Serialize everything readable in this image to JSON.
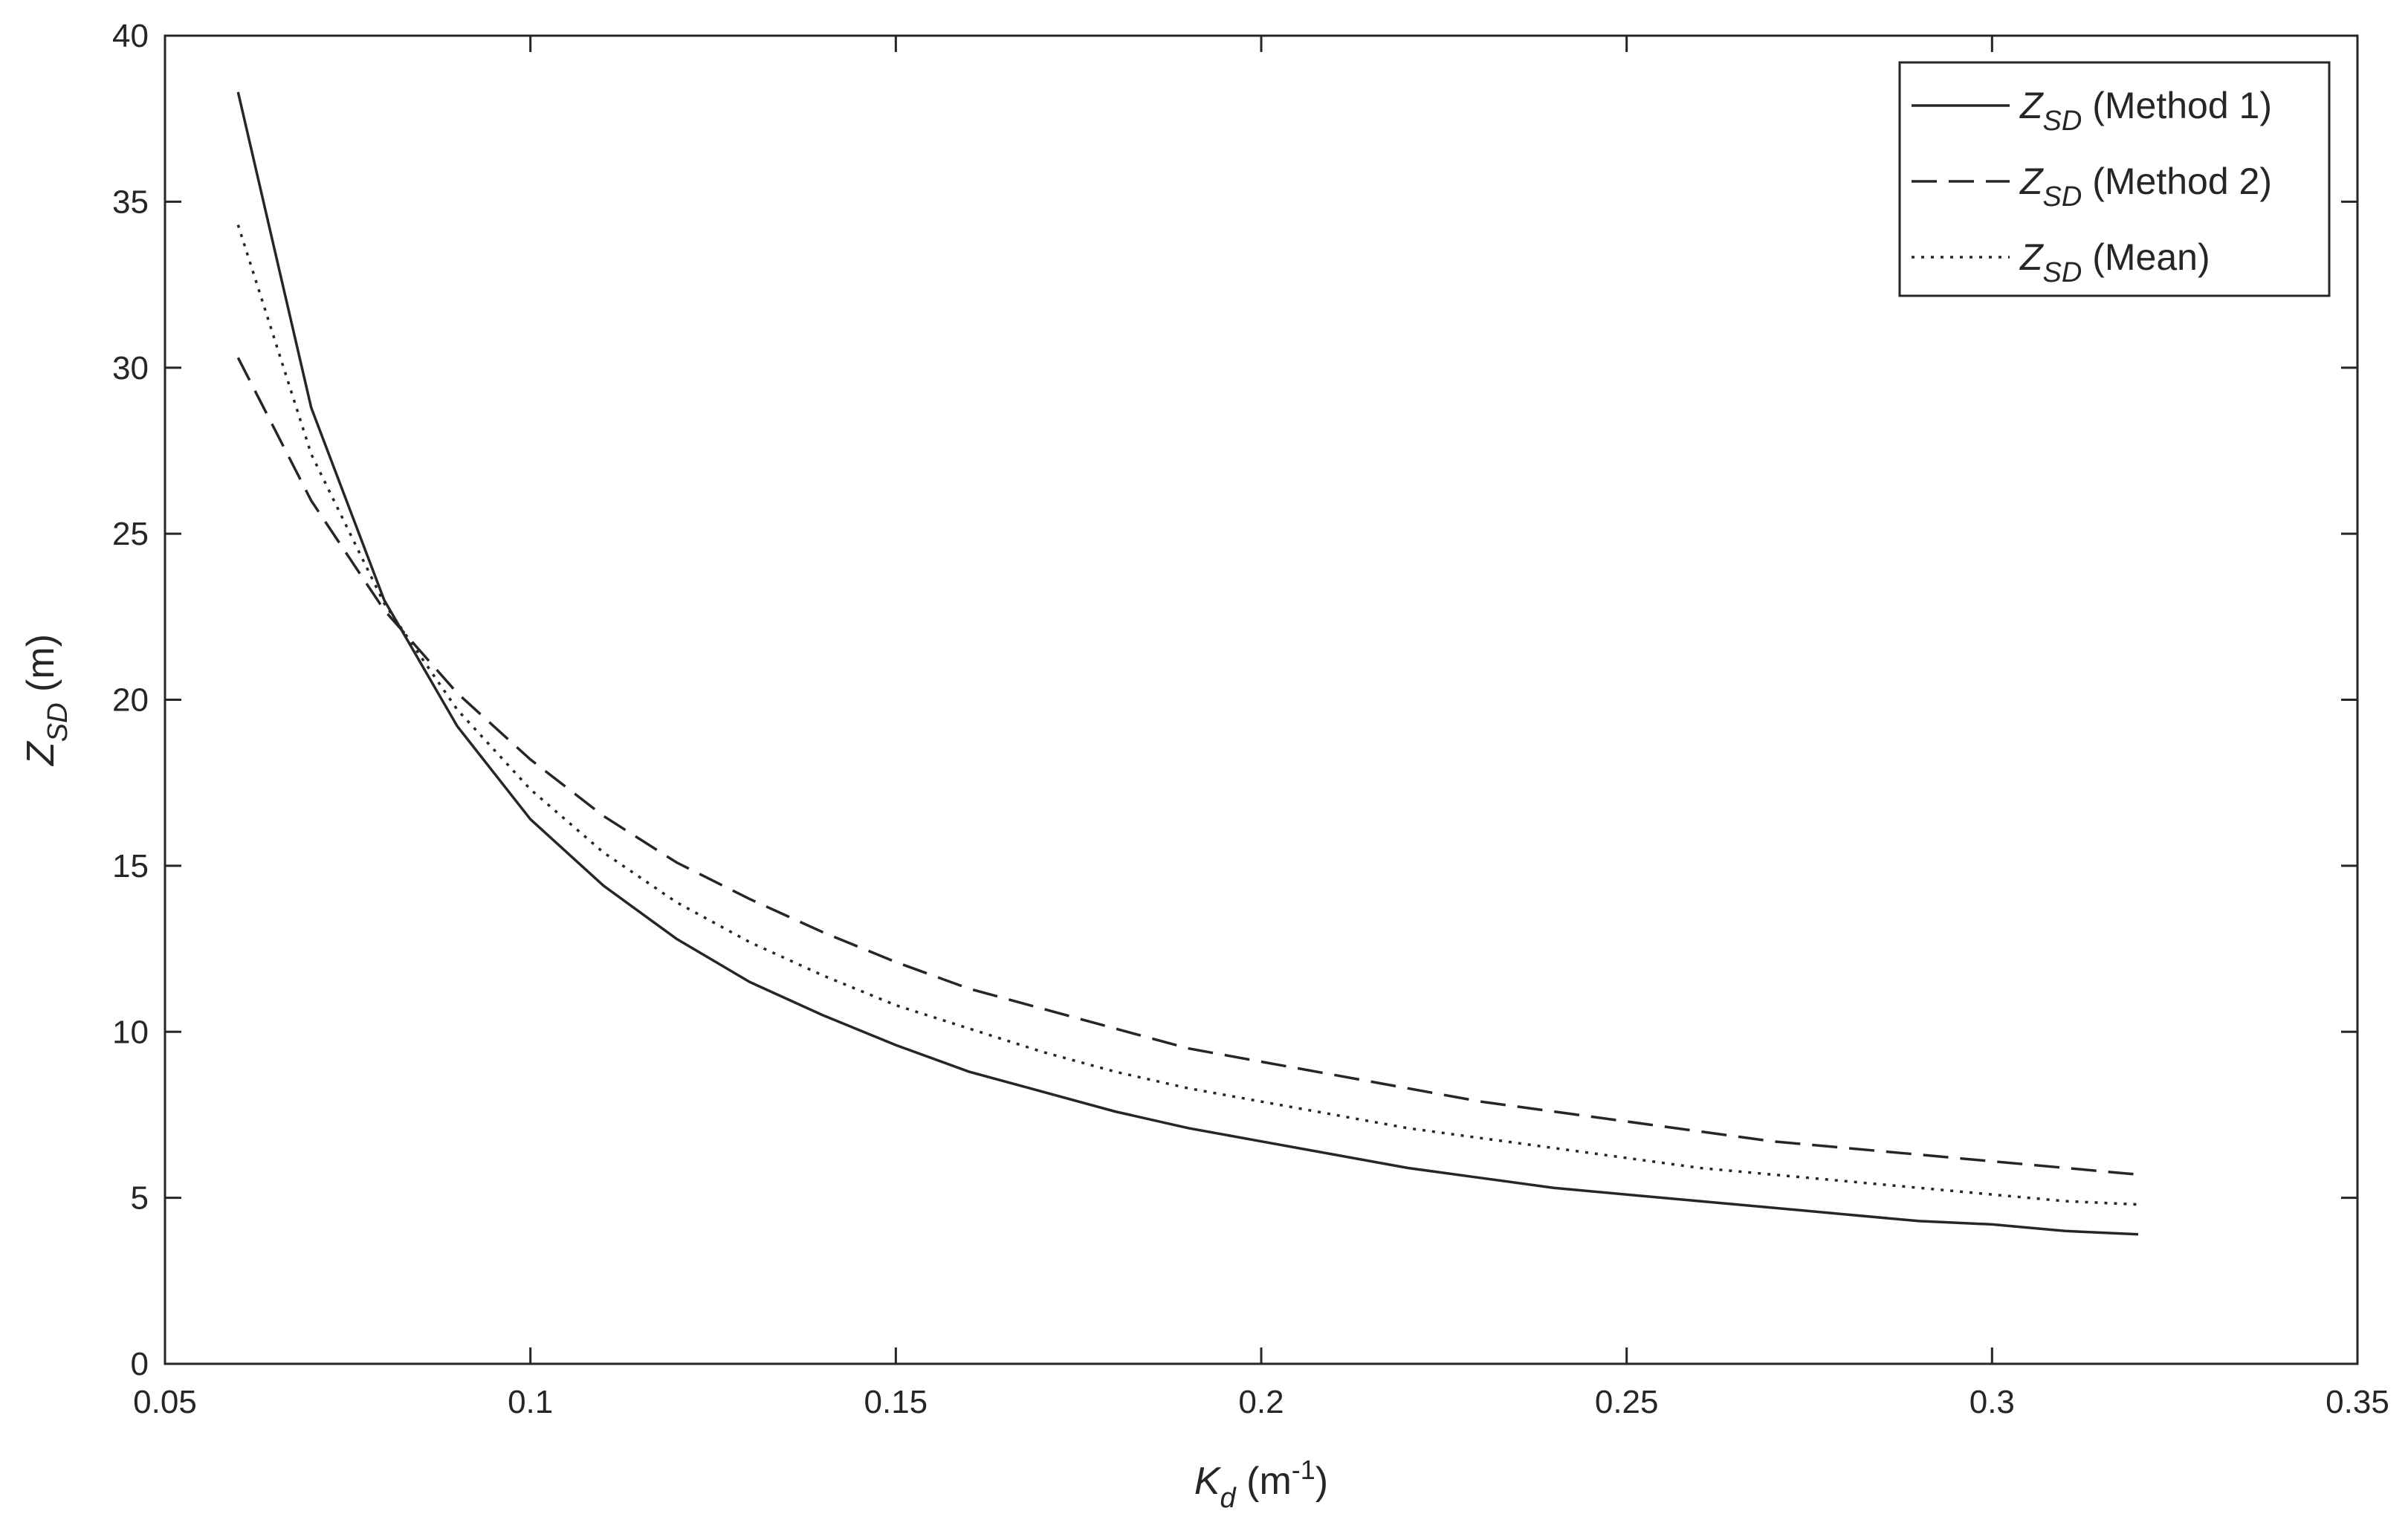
{
  "chart_data": {
    "type": "line",
    "xlabel": {
      "main": "K",
      "sub": "d",
      "unit_open": " (m",
      "unit_sup": "-1",
      "unit_close": ")"
    },
    "ylabel": {
      "main": "Z",
      "sub": "SD",
      "unit": " (m)"
    },
    "xlim": [
      0.05,
      0.35
    ],
    "ylim": [
      0,
      40
    ],
    "x_ticks": [
      0.05,
      0.1,
      0.15,
      0.2,
      0.25,
      0.3,
      0.35
    ],
    "x_tick_labels": [
      "0.05",
      "0.1",
      "0.15",
      "0.2",
      "0.25",
      "0.3",
      "0.35"
    ],
    "y_ticks": [
      0,
      5,
      10,
      15,
      20,
      25,
      30,
      35,
      40
    ],
    "y_tick_labels": [
      "0",
      "5",
      "10",
      "15",
      "20",
      "25",
      "30",
      "35",
      "40"
    ],
    "grid": false,
    "legend_position": "top-right",
    "x": [
      0.06,
      0.07,
      0.08,
      0.09,
      0.1,
      0.11,
      0.12,
      0.13,
      0.14,
      0.15,
      0.16,
      0.17,
      0.18,
      0.19,
      0.2,
      0.21,
      0.22,
      0.23,
      0.24,
      0.25,
      0.26,
      0.27,
      0.28,
      0.29,
      0.3,
      0.31,
      0.32
    ],
    "series": [
      {
        "name_main": "Z",
        "name_sub": "SD",
        "name_rest": " (Method 1)",
        "line_style": "solid",
        "values": [
          38.3,
          28.8,
          23.0,
          19.2,
          16.4,
          14.4,
          12.8,
          11.5,
          10.5,
          9.6,
          8.8,
          8.2,
          7.6,
          7.1,
          6.7,
          6.3,
          5.9,
          5.6,
          5.3,
          5.1,
          4.9,
          4.7,
          4.5,
          4.3,
          4.2,
          4.0,
          3.9
        ]
      },
      {
        "name_main": "Z",
        "name_sub": "SD",
        "name_rest": " (Method 2)",
        "line_style": "dashed",
        "values": [
          30.3,
          26.0,
          22.7,
          20.2,
          18.2,
          16.5,
          15.1,
          14.0,
          13.0,
          12.1,
          11.3,
          10.7,
          10.1,
          9.5,
          9.1,
          8.7,
          8.3,
          7.9,
          7.6,
          7.3,
          7.0,
          6.7,
          6.5,
          6.3,
          6.1,
          5.9,
          5.7
        ]
      },
      {
        "name_main": "Z",
        "name_sub": "SD",
        "name_rest": " (Mean)",
        "line_style": "dotted",
        "values": [
          34.3,
          27.4,
          22.9,
          19.7,
          17.3,
          15.4,
          13.9,
          12.7,
          11.7,
          10.8,
          10.1,
          9.4,
          8.8,
          8.3,
          7.9,
          7.5,
          7.1,
          6.8,
          6.5,
          6.2,
          5.9,
          5.7,
          5.5,
          5.3,
          5.1,
          4.9,
          4.8
        ]
      }
    ]
  }
}
